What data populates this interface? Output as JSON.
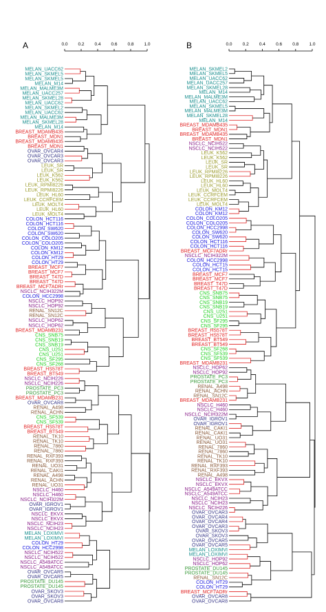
{
  "colors": {
    "MELAN": "#1a8f8f",
    "BREAST": "#e02020",
    "OVAR": "#3a3a8a",
    "LEUK": "#9a9a2a",
    "COLON": "#2020e0",
    "NSCLC": "#8a208a",
    "CNS": "#20d020",
    "RENAL": "#8a5a3a",
    "PROSTATE": "#3a9a3a",
    "branch": "#000000",
    "highlight": "#e02020"
  },
  "panels": [
    {
      "letter": "A",
      "scale_ticks": [
        "0.0",
        "0.2",
        "0.4",
        "0.6",
        "0.8",
        "1.0"
      ],
      "leaves": [
        "MELAN_UACC62",
        "MELAN_SKMEL5",
        "MELAN_SKMEL5",
        "MELAN_M14",
        "MELAN_MALME3M",
        "MELAN_UACC257",
        "MELAN_SKMEL28",
        "MELAN_UACC62",
        "MELAN_SKMEL2",
        "MELAN_UACC62",
        "MELAN_MALME3M",
        "MELAN_SKMEL28",
        "MELAN_M14",
        "BREAST_MDAMB435",
        "BREAST_MDN1",
        "BREAST_MDAMB435",
        "BREAST_MDN1",
        "OVAR_OVCAR4",
        "OVAR_OVCAR3",
        "OVAR_OVCAR3",
        "LEUK_SR",
        "LEUK_SR",
        "LEUK_K562",
        "LEUK_K562",
        "LEUK_RPMI8226",
        "LEUK_RPMI8226",
        "LEUK_HL60",
        "LEUK_CCRFCEM",
        "LEUK_MOLT4",
        "LEUK_HL60",
        "LEUK_MOLT4",
        "COLON_HCT116",
        "COLON_HCT116",
        "COLON_SW620",
        "COLON_SW620",
        "COLON_COLO205",
        "COLON_COLO205",
        "COLON_KM12",
        "COLON_KM12",
        "COLON_HT29",
        "COLON_HT29",
        "BREAST_MCF7",
        "BREAST_MCF7",
        "BREAST_T47D",
        "BREAST_T47D",
        "BREAST_MCF7ADRr",
        "NSCLC_NCIH322M",
        "COLON_HCC2998",
        "NSCLC_HOP92",
        "NSCLC_HOP92",
        "RENAL_SN12C",
        "RENAL_SN12C",
        "NSCLC_HOP62",
        "NSCLC_HOP62",
        "BREAST_MDAMB231",
        "CNS_SNB75",
        "CNS_SNB19",
        "CNS_SNB19",
        "CNS_U251",
        "CNS_U251",
        "CNS_SF295",
        "CNS_SF268",
        "BREAST_HS578T",
        "BREAST_BT549",
        "NSCLC_NCIH226",
        "NSCLC_NCIH226",
        "PROSTATE_PC3",
        "PROSTATE_PC3",
        "BREAST_MDAMB231",
        "OVAR_OVCAR8",
        "RENAL_A498",
        "RENAL_ACHN",
        "CNS_SF539",
        "CNS_SF539",
        "BREAST_HS578T",
        "BREAST_BT549",
        "RENAL_TK10",
        "RENAL_TK10",
        "RENAL_7860",
        "RENAL_7860",
        "RENAL_RXF393",
        "RENAL_RXF393",
        "RENAL_UO31",
        "RENAL_CAKI1",
        "RENAL_A498",
        "RENAL_ACHN",
        "RENAL_UO31",
        "NSCLC_H460",
        "NSCLC_H460",
        "NSCLC_NCIH322M",
        "OVAR_IGROV1",
        "OVAR_IGROV1",
        "NSCLC_EKVX",
        "NSCLC_EKVX",
        "NSCLC_NCIH23",
        "NSCLC_NCIH23",
        "MELAN_LOXIMVI",
        "MELAN_LOXIMVI",
        "COLON_HT29",
        "COLON_HCC2998",
        "NSCLC_NCIH522",
        "NSCLC_NCIH522",
        "NSCLC_A549ATCC",
        "NSCLC_A549ATCC",
        "OVAR_OVCAR5",
        "OVAR_OVCAR5",
        "PROSTATE_DU145",
        "PROSTATE_DU145",
        "OVAR_SKOV3",
        "OVAR_SKOV3",
        "OVAR_OVCAR8"
      ]
    },
    {
      "letter": "B",
      "scale_ticks": [
        "0.0",
        "0.2",
        "0.4",
        "0.6",
        "0.8",
        "1.0"
      ],
      "leaves": [
        "MELAN_SKMEL2",
        "MELAN_SKMEL5",
        "MELAN_UACC62",
        "MELAN_UACC257",
        "MELAN_SKMEL28",
        "MELAN_M14",
        "MELAN_MALME3M",
        "MELAN_UACC62",
        "MELAN_SKMEL5",
        "MELAN_MALME3M",
        "MELAN_SKMEL28",
        "MELAN_M14",
        "BREAST_MDAMB435",
        "BREAST_MDN1",
        "BREAST_MDAMB435",
        "BREAST_MDN1",
        "NSCLC_NCIH522",
        "NSCLC_NCIH522",
        "LEUK_K562",
        "LEUK_K562",
        "LEUK_SR",
        "LEUK_SR",
        "LEUK_RPMI8226",
        "LEUK_RPMI8226",
        "LEUK_HL60",
        "LEUK_HL60",
        "LEUK_MOLT4",
        "LEUK_CCRFCEM",
        "LEUK_CCRFCEM",
        "LEUK_MOLT4",
        "COLON_KM12",
        "COLON_KM12",
        "COLON_COLO205",
        "COLON_COLO205",
        "COLON_HCC2998",
        "COLON_SW620",
        "COLON_SW620",
        "COLON_HCT116",
        "COLON_HCT116",
        "BREAST_MCF7ADRr",
        "NSCLC_NCIH322M",
        "COLON_HCC2998",
        "COLON_HCT15",
        "COLON_HCT15",
        "BREAST_MCF7",
        "BREAST_MCF7",
        "BREAST_T47D",
        "BREAST_T47D",
        "CNS_SNB75",
        "CNS_SNB75",
        "CNS_SNB19",
        "CNS_SNB19",
        "CNS_U251",
        "CNS_U251",
        "CNS_SF295",
        "CNS_SF295",
        "BREAST_HS578T",
        "BREAST_HS578T",
        "BREAST_BT549",
        "BREAST_BT549",
        "CNS_SF268",
        "CNS_SF539",
        "CNS_SF539",
        "BREAST_MDAMB231",
        "NSCLC_HOP62",
        "NSCLC_HOP92",
        "PROSTATE_PC3",
        "PROSTATE_PC3",
        "RENAL_A498",
        "RENAL_ACHN",
        "RENAL_SN12C",
        "BREAST_MDAMB231",
        "NSCLC_H460",
        "NSCLC_H460",
        "NSCLC_NCIH322M",
        "OVAR_IGROV1",
        "OVAR_IGROV1",
        "RENAL_CAKI1",
        "RENAL_CAKI1",
        "RENAL_UO31",
        "RENAL_UO31",
        "RENAL_7860",
        "RENAL_7860",
        "RENAL_TK10",
        "RENAL_TK10",
        "RENAL_RXF393",
        "RENAL_RXF393",
        "RENAL_A498",
        "NSCLC_EKVX",
        "NSCLC_EKVX",
        "NSCLC_A549ATCC",
        "NSCLC_A549ATCC",
        "NSCLC_NCIH23",
        "NSCLC_NCIH23",
        "NSCLC_NCIH226",
        "OVAR_OVCAR3",
        "OVAR_OVCAR4",
        "OVAR_OVCAR4",
        "OVAR_OVCAR3",
        "OVAR_SKOV3",
        "OVAR_SKOV3",
        "OVAR_OVCAR5",
        "OVAR_OVCAR5",
        "MELAN_LOXIMVI",
        "MELAN_LOXIMVI",
        "NSCLC_HOP92",
        "NSCLC_HOP62",
        "PROSTATE_DU145",
        "PROSTATE_DU145",
        "RENAL_SN12C",
        "COLON_HT29",
        "COLON_HT29",
        "BREAST_MCF7ADRr",
        "OVAR_OVCAR8",
        "OVAR_OVCAR8"
      ]
    }
  ]
}
